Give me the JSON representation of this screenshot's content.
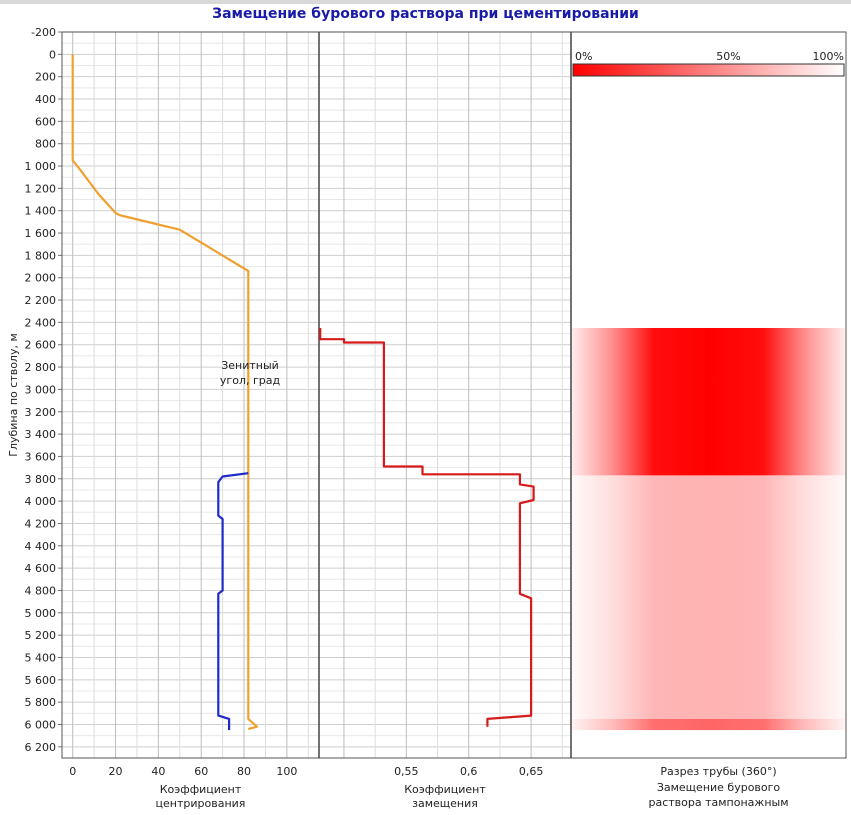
{
  "chart_data": {
    "type": "line",
    "title": "Замещение бурового раствора при цементировании",
    "ylabel": "Глубина по стволу, м",
    "y_axis": {
      "range": [
        -200,
        6300
      ],
      "ticks": [
        "-200",
        "0",
        "200",
        "400",
        "600",
        "800",
        "1 000",
        "1 200",
        "1 400",
        "1 600",
        "1 800",
        "2 000",
        "2 200",
        "2 400",
        "2 600",
        "2 800",
        "3 000",
        "3 200",
        "3 400",
        "3 600",
        "3 800",
        "4 000",
        "4 200",
        "4 400",
        "4 600",
        "4 800",
        "5 000",
        "5 200",
        "5 400",
        "5 600",
        "5 800",
        "6 000",
        "6 200"
      ],
      "tick_values": [
        -200,
        0,
        200,
        400,
        600,
        800,
        1000,
        1200,
        1400,
        1600,
        1800,
        2000,
        2200,
        2400,
        2600,
        2800,
        3000,
        3200,
        3400,
        3600,
        3800,
        4000,
        4200,
        4400,
        4600,
        4800,
        5000,
        5200,
        5400,
        5600,
        5800,
        6000,
        6200
      ]
    },
    "track1": {
      "xlabel": "Коэффициент центрирования",
      "xlim": [
        -5,
        115
      ],
      "x_ticks": [
        "0",
        "20",
        "40",
        "60",
        "80",
        "100"
      ],
      "x_tick_values": [
        0,
        20,
        40,
        60,
        80,
        100
      ],
      "series": [
        {
          "name": "Зенитный угол, град",
          "color": "#f0a030",
          "points": [
            [
              0,
              0
            ],
            [
              0,
              950
            ],
            [
              3,
              1020
            ],
            [
              12,
              1250
            ],
            [
              20,
              1420
            ],
            [
              22,
              1440
            ],
            [
              50,
              1570
            ],
            [
              82,
              1940
            ],
            [
              82,
              5950
            ],
            [
              86,
              6020
            ],
            [
              82,
              6040
            ]
          ]
        },
        {
          "name": "",
          "color": "#1f2bc7",
          "points": [
            [
              82,
              3750
            ],
            [
              70,
              3780
            ],
            [
              68,
              3830
            ],
            [
              68,
              4130
            ],
            [
              70,
              4160
            ],
            [
              70,
              4800
            ],
            [
              68,
              4830
            ],
            [
              68,
              5920
            ],
            [
              73,
              5950
            ],
            [
              73,
              6050
            ]
          ]
        }
      ]
    },
    "track2": {
      "xlabel": "Коэффициент замещения",
      "xlim": [
        0.48,
        0.682
      ],
      "x_ticks": [
        "0,55",
        "0,6",
        "0,65"
      ],
      "x_tick_values": [
        0.55,
        0.6,
        0.65
      ],
      "series": [
        {
          "name": "",
          "color": "#d61a1a",
          "points": [
            [
              0.481,
              2450
            ],
            [
              0.481,
              2550
            ],
            [
              0.5,
              2550
            ],
            [
              0.5,
              2580
            ],
            [
              0.532,
              2580
            ],
            [
              0.532,
              3690
            ],
            [
              0.563,
              3690
            ],
            [
              0.563,
              3760
            ],
            [
              0.641,
              3760
            ],
            [
              0.641,
              3850
            ],
            [
              0.652,
              3870
            ],
            [
              0.652,
              3990
            ],
            [
              0.641,
              4020
            ],
            [
              0.641,
              4830
            ],
            [
              0.65,
              4870
            ],
            [
              0.65,
              5920
            ],
            [
              0.615,
              5950
            ],
            [
              0.615,
              6020
            ]
          ]
        }
      ]
    },
    "track3": {
      "xlabel": "Разрез трубы (360°)",
      "xlabel2": "Замещение бурового раствора тампонажным",
      "colorbar_labels": [
        "0%",
        "50%",
        "100%"
      ],
      "colors": {
        "high": "#ff0000",
        "low": "#ffffff"
      },
      "bands": [
        {
          "depth_top": 2450,
          "depth_bottom": 3770,
          "center_intensity": 1.0
        },
        {
          "depth_top": 3770,
          "depth_bottom": 5950,
          "center_intensity": 0.3
        },
        {
          "depth_top": 5950,
          "depth_bottom": 6050,
          "center_intensity": 0.6
        }
      ]
    }
  }
}
